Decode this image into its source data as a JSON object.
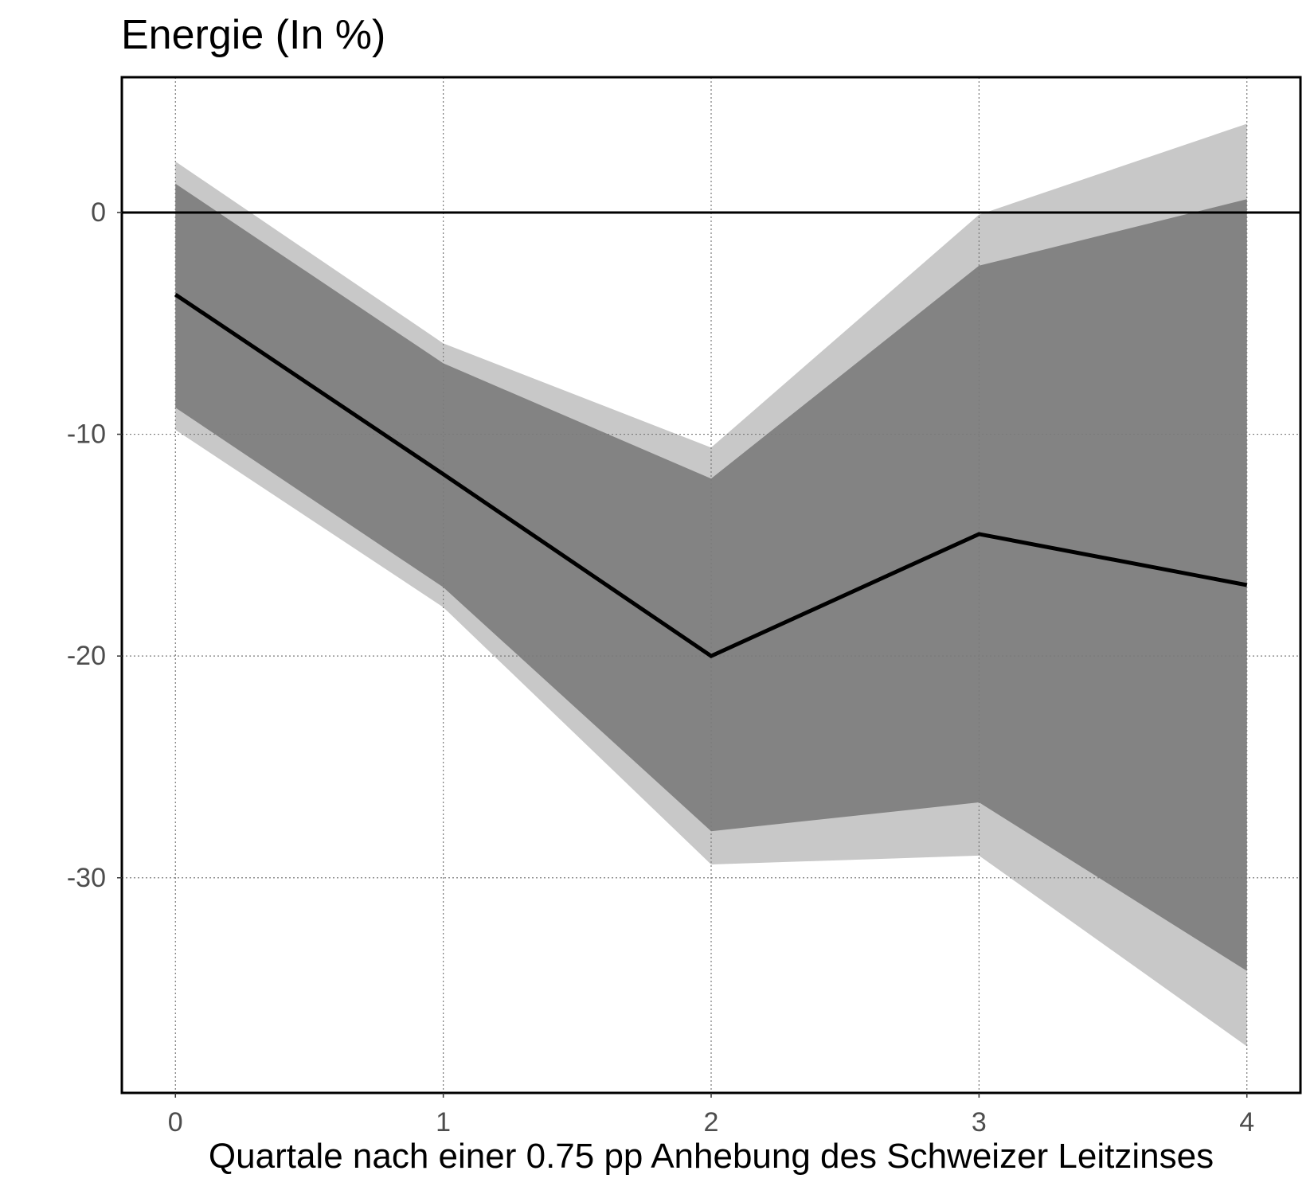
{
  "chart_data": {
    "type": "line",
    "title": "Energie (In %)",
    "xlabel": "Quartale nach einer 0.75 pp Anhebung des Schweizer Leitzinses",
    "ylabel": "",
    "x": [
      0,
      1,
      2,
      3,
      4
    ],
    "xticks": [
      "0",
      "1",
      "2",
      "3",
      "4"
    ],
    "yticks": [
      {
        "value": 0,
        "label": "0"
      },
      {
        "value": -10,
        "label": "-10"
      },
      {
        "value": -20,
        "label": "-20"
      },
      {
        "value": -30,
        "label": "-30"
      }
    ],
    "xlim": [
      -0.2,
      4.2
    ],
    "ylim": [
      -39.7,
      6.1
    ],
    "grid": true,
    "zero_line": true,
    "series": [
      {
        "values": [
          -3.7,
          -11.8,
          -20.0,
          -14.5,
          -16.8
        ]
      }
    ],
    "bands": [
      {
        "lower": [
          -9.8,
          -17.8,
          -29.4,
          -29.0,
          -37.6
        ],
        "upper": [
          2.3,
          -5.9,
          -10.6,
          -0.1,
          4.0
        ],
        "color": "#c8c8c8"
      },
      {
        "lower": [
          -8.8,
          -16.9,
          -27.9,
          -26.6,
          -34.2
        ],
        "upper": [
          1.3,
          -6.8,
          -12.0,
          -2.4,
          0.6
        ],
        "color": "#838383"
      }
    ],
    "line_color": "#000000",
    "axis_text_color": "#4d4d4d",
    "grid_color": "#7a7a7a"
  }
}
